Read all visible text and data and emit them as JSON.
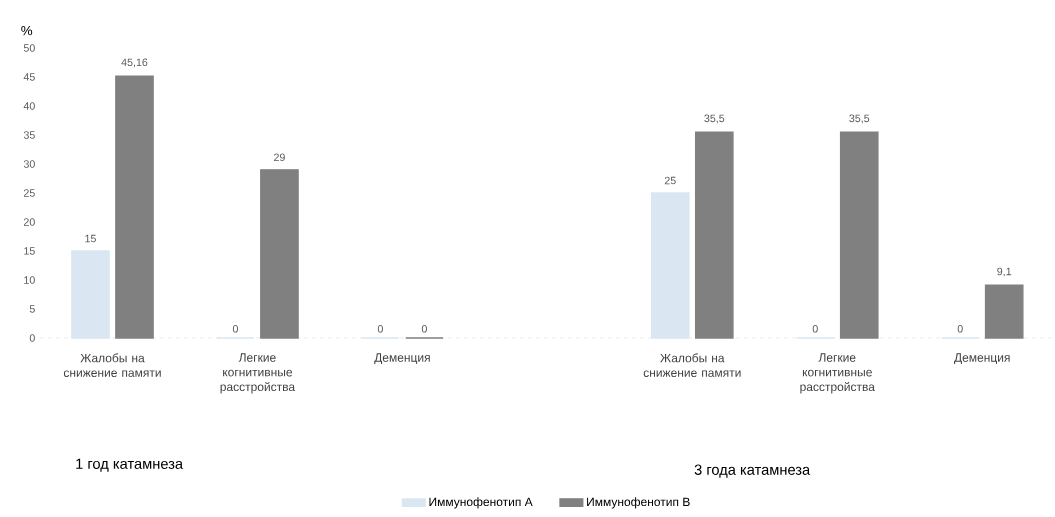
{
  "chart_data": {
    "type": "bar",
    "ylabel": "%",
    "categories": [
      "Жалобы на снижение памяти",
      "Легкие когнитивные расстройства",
      "Деменция",
      null,
      "Жалобы на снижение памяти",
      "Легкие когнитивные расстройства",
      "Деменция"
    ],
    "series": [
      {
        "name": "Иммунофенотип А",
        "color": "#dae7f3",
        "values": [
          15,
          0,
          0,
          null,
          25,
          0,
          0
        ],
        "value_labels": [
          "15",
          "0",
          "0",
          null,
          "25",
          "0",
          "0"
        ]
      },
      {
        "name": "Иммунофенотип В",
        "color": "#808080",
        "values": [
          45.16,
          29,
          0,
          null,
          35.5,
          35.5,
          9.1
        ],
        "value_labels": [
          "45,16",
          "29",
          "0",
          null,
          "35,5",
          "35,5",
          "9,1"
        ]
      }
    ],
    "ylim": [
      0,
      50
    ],
    "yticks": [
      0,
      5,
      10,
      15,
      20,
      25,
      30,
      35,
      40,
      45,
      50
    ],
    "annotations": [
      "1 год катамнеза",
      "3 года катамнеза"
    ],
    "grid": false,
    "legend": "bottom"
  }
}
